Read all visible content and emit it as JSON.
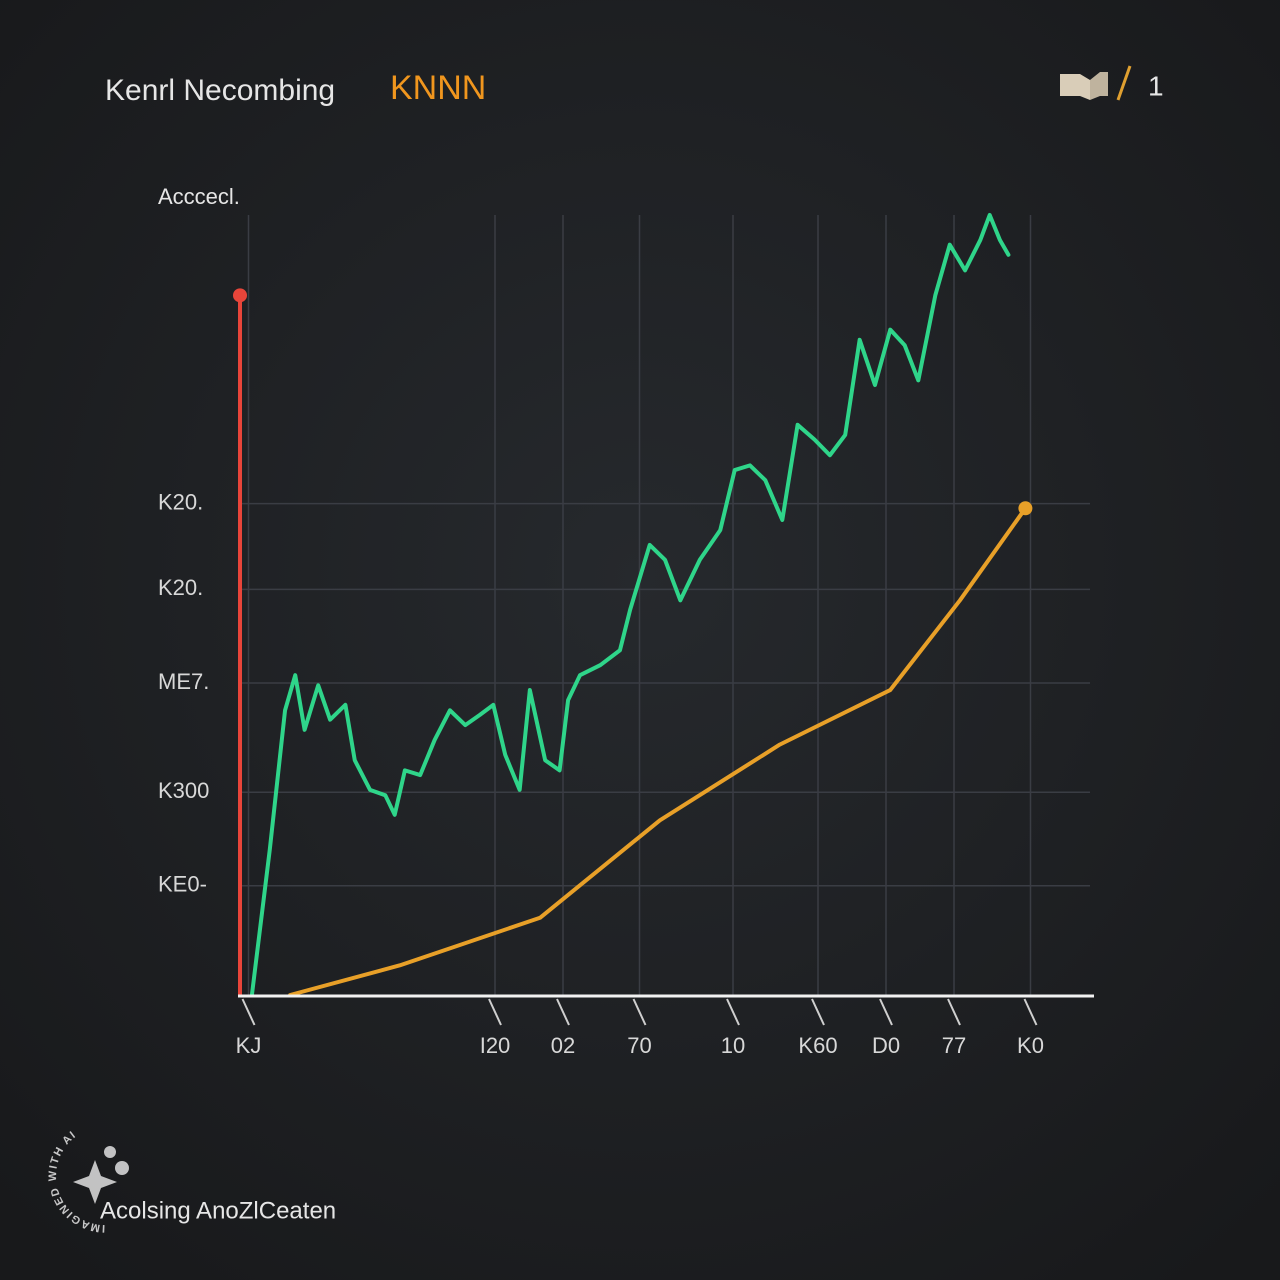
{
  "chart_data": {
    "type": "line",
    "title": "Kenrl Necombing",
    "title_accent": "KNNN",
    "page_number": "1",
    "y_label": "Acccecl.",
    "footer": "Acolsing AnoZlCeaten",
    "watermark": "IMAGINED WITH AI",
    "xlim": [
      0,
      100
    ],
    "ylim": [
      0,
      100
    ],
    "grid": true,
    "xticks": [
      {
        "value": 1,
        "label": "KJ"
      },
      {
        "value": 30,
        "label": "I20"
      },
      {
        "value": 38,
        "label": "02"
      },
      {
        "value": 47,
        "label": "70"
      },
      {
        "value": 58,
        "label": "10"
      },
      {
        "value": 68,
        "label": "K60"
      },
      {
        "value": 76,
        "label": "D0"
      },
      {
        "value": 84,
        "label": "77"
      },
      {
        "value": 93,
        "label": "K0"
      }
    ],
    "yticks": [
      {
        "value": 14,
        "label": "KE0-"
      },
      {
        "value": 26,
        "label": "K300"
      },
      {
        "value": 40,
        "label": "ME7."
      },
      {
        "value": 52,
        "label": "K20."
      },
      {
        "value": 63,
        "label": "K20."
      }
    ],
    "series": [
      {
        "color": "#2fd58a",
        "x": [
          1.4,
          3.5,
          5.3,
          6.5,
          7.6,
          9.2,
          10.6,
          12.4,
          13.5,
          15.3,
          17.1,
          18.2,
          19.4,
          21.2,
          22.9,
          24.7,
          26.5,
          28.2,
          29.8,
          31.2,
          32.9,
          34.1,
          35.9,
          37.6,
          38.6,
          40.0,
          42.4,
          44.7,
          45.9,
          48.2,
          50.0,
          51.8,
          54.1,
          56.5,
          58.2,
          60.0,
          61.8,
          63.8,
          65.6,
          67.6,
          69.4,
          71.2,
          72.9,
          74.7,
          76.5,
          78.2,
          79.8,
          81.8,
          83.5,
          85.3,
          87.1,
          88.2,
          89.4,
          90.4
        ],
        "values": [
          0,
          18.6,
          36.5,
          41.0,
          34.0,
          39.7,
          35.3,
          37.2,
          30.1,
          26.3,
          25.6,
          23.1,
          28.8,
          28.2,
          32.7,
          36.5,
          34.6,
          35.9,
          37.2,
          30.8,
          26.3,
          39.1,
          30.1,
          28.8,
          37.8,
          41.0,
          42.3,
          44.2,
          49.4,
          57.7,
          55.8,
          50.6,
          55.8,
          59.6,
          67.3,
          67.9,
          66.0,
          60.9,
          73.1,
          71.2,
          69.2,
          71.8,
          84.0,
          78.2,
          85.3,
          83.3,
          78.8,
          89.7,
          96.2,
          92.9,
          96.8,
          100,
          96.8,
          94.9
        ]
      },
      {
        "color": "#e8a028",
        "x": [
          5.9,
          18.8,
          35.3,
          49.4,
          63.5,
          76.5,
          84.7,
          92.4
        ],
        "values": [
          0,
          3.8,
          9.9,
          22.4,
          32.1,
          39.1,
          50.6,
          62.4
        ]
      },
      {
        "color": "#e8453a",
        "x": [
          0,
          0
        ],
        "values": [
          0,
          89.7
        ]
      }
    ]
  }
}
